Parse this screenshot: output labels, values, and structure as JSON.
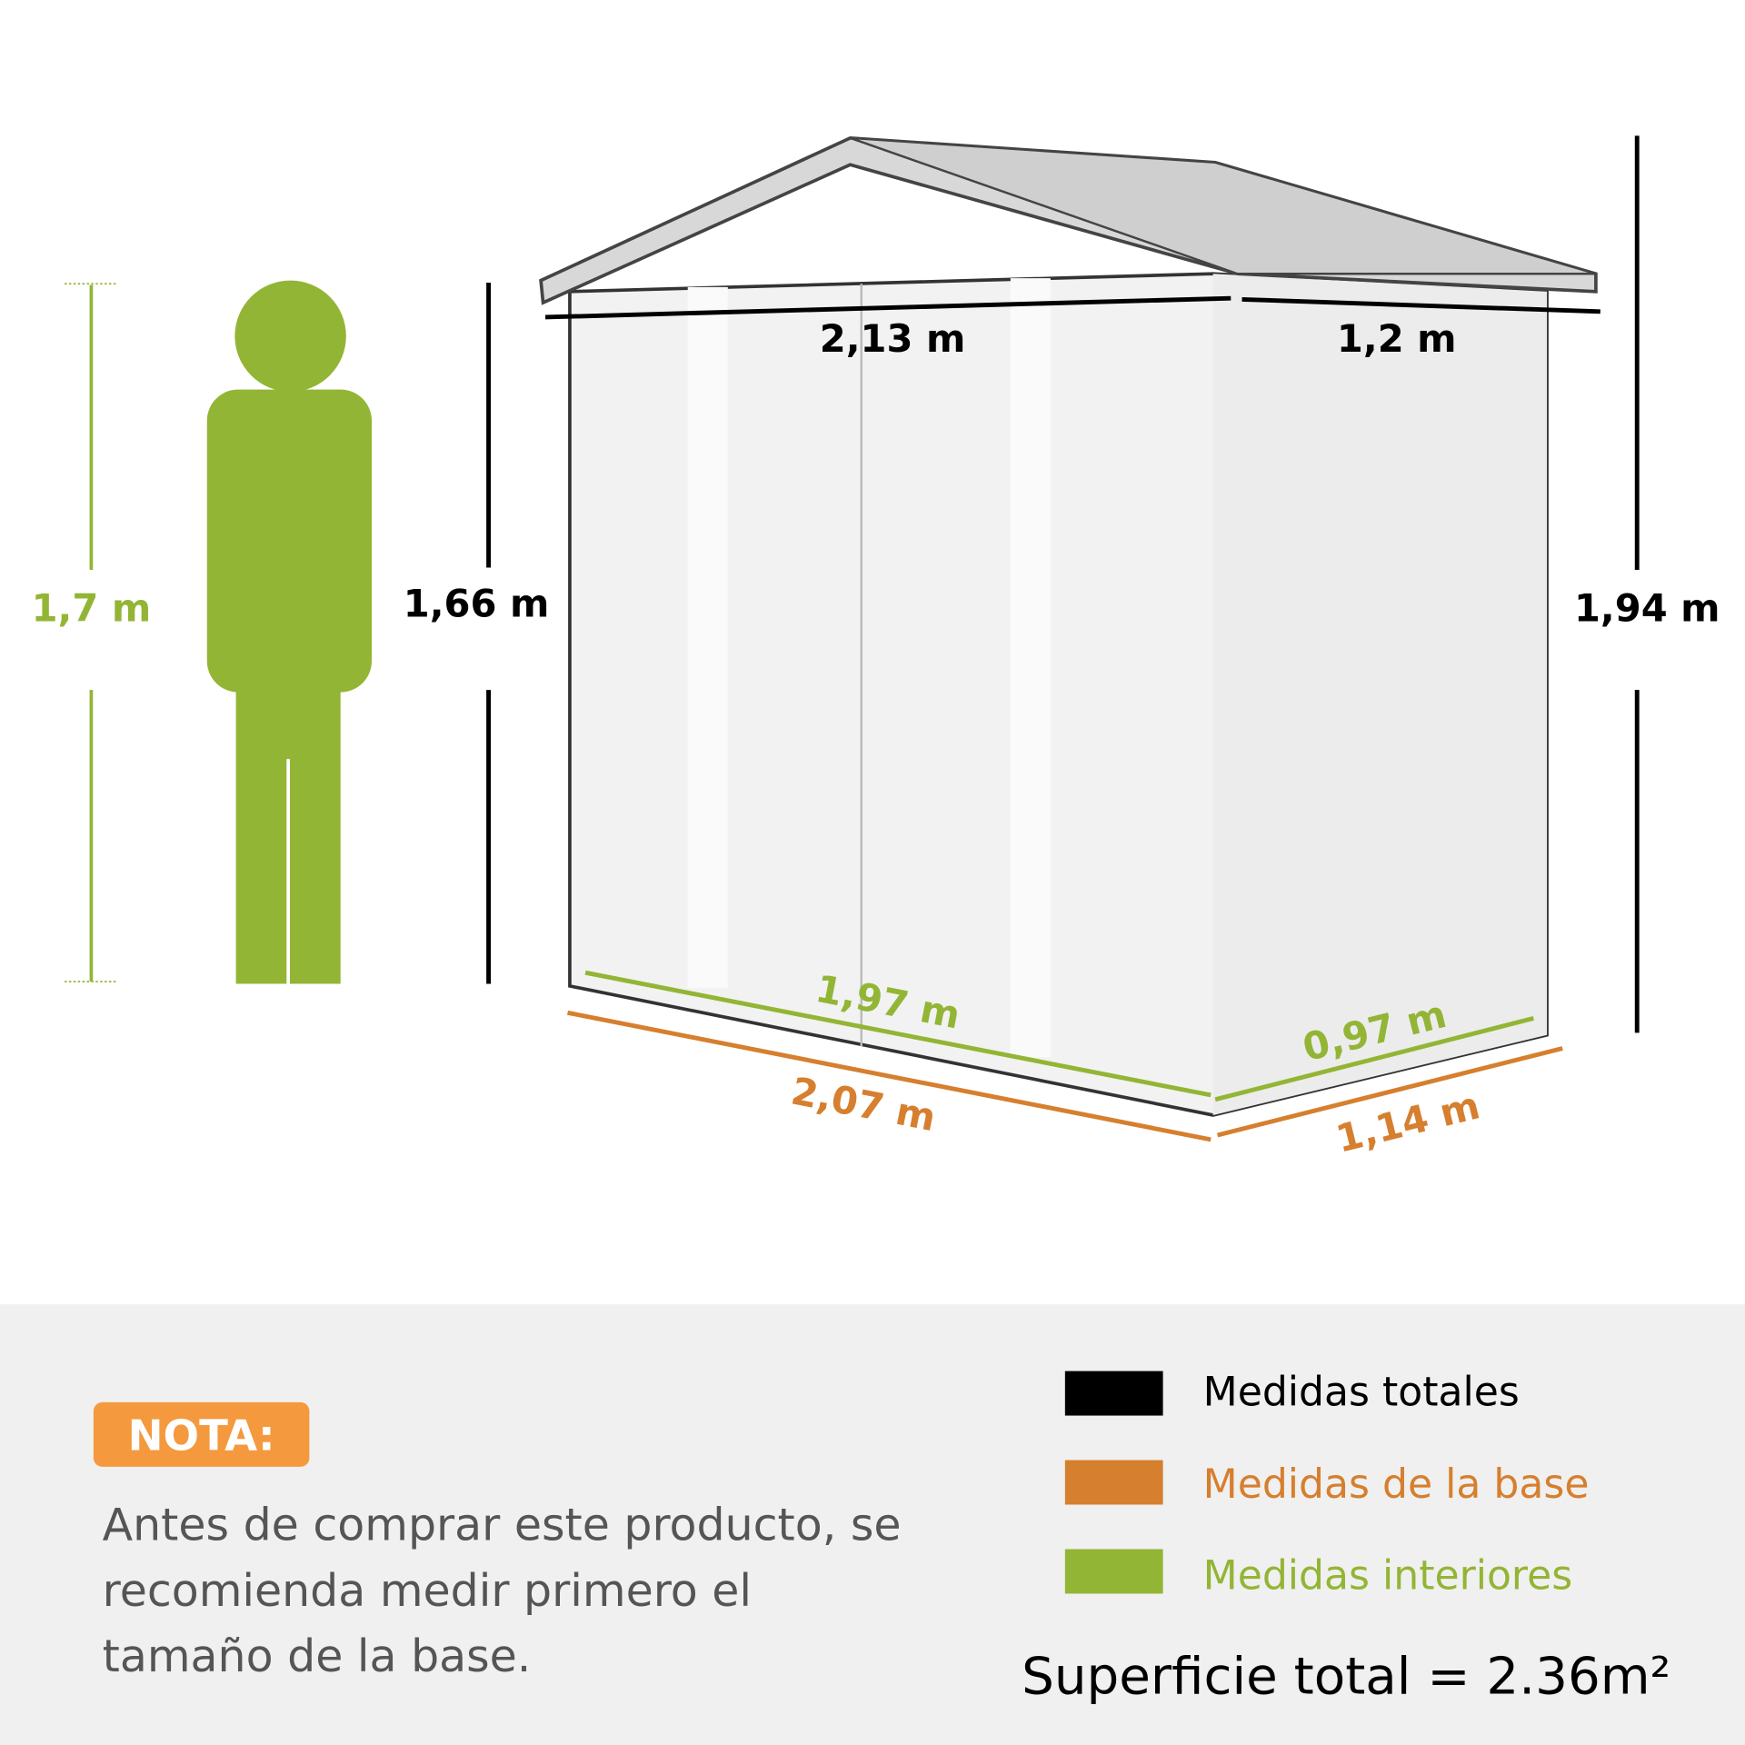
{
  "colors": {
    "total": "#000000",
    "base": "#d67f2e",
    "interior": "#93b535",
    "nota_bg": "#f5993e",
    "panel_bg": "#f0f0f0"
  },
  "person": {
    "height_label": "1,7 m"
  },
  "shed": {
    "wall_height": "1,66 m",
    "total_height": "1,94 m",
    "roof_width": "2,13 m",
    "roof_depth": "1,2 m",
    "interior_width": "1,97 m",
    "interior_depth": "0,97 m",
    "base_width": "2,07 m",
    "base_depth": "1,14 m"
  },
  "note": {
    "badge": "NOTA:",
    "lines": [
      "Antes de comprar este producto, se",
      "recomienda medir primero el",
      "tamaño de la base."
    ]
  },
  "legend": [
    {
      "label": "Medidas totales",
      "color": "#000000"
    },
    {
      "label": "Medidas de la base",
      "color": "#d67f2e"
    },
    {
      "label": "Medidas interiores",
      "color": "#93b535"
    }
  ],
  "surface": "Superficie total = 2.36m²"
}
